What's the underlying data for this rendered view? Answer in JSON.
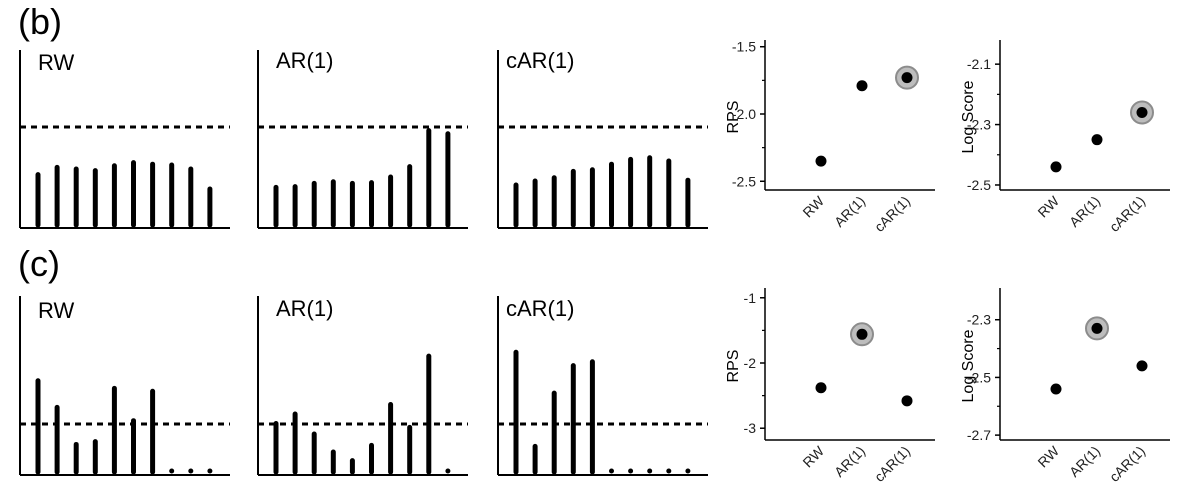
{
  "figure": {
    "rows": [
      {
        "label": "(b)",
        "hist_panels": [
          {
            "title": "RW",
            "values": [
              0.63,
              0.72,
              0.7,
              0.68,
              0.74,
              0.78,
              0.76,
              0.75,
              0.7,
              0.45
            ]
          },
          {
            "title": "AR(1)",
            "values": [
              0.47,
              0.48,
              0.52,
              0.54,
              0.52,
              0.53,
              0.6,
              0.73,
              1.18,
              1.14
            ]
          },
          {
            "title": "cAR(1)",
            "values": [
              0.5,
              0.55,
              0.59,
              0.67,
              0.69,
              0.76,
              0.82,
              0.84,
              0.8,
              0.56
            ]
          }
        ]
      },
      {
        "label": "(c)",
        "hist_panels": [
          {
            "title": "RW",
            "values": [
              0.96,
              0.68,
              0.29,
              0.32,
              0.88,
              0.54,
              0.85,
              0.0,
              0.0,
              0.0
            ]
          },
          {
            "title": "AR(1)",
            "values": [
              0.51,
              0.61,
              0.4,
              0.21,
              0.12,
              0.28,
              0.71,
              0.47,
              1.22,
              0.0
            ]
          },
          {
            "title": "cAR(1)",
            "values": [
              1.26,
              0.27,
              0.83,
              1.12,
              1.16,
              0.0,
              0.0,
              0.0,
              0.0,
              0.0
            ]
          }
        ]
      }
    ]
  },
  "chart_data": [
    {
      "type": "scatter",
      "row": "(b)",
      "ylabel": "RPS",
      "categories": [
        "RW",
        "AR(1)",
        "cAR(1)"
      ],
      "values": [
        -2.35,
        -1.79,
        -1.73
      ],
      "highlight_index": 2,
      "ylim": [
        -2.55,
        -1.45
      ],
      "yticks": [
        -1.5,
        -2.0,
        -2.5
      ],
      "ytick_labels": [
        "-1.5",
        "-2.0",
        "-2.5"
      ]
    },
    {
      "type": "scatter",
      "row": "(b)",
      "ylabel": "Log Score",
      "categories": [
        "RW",
        "AR(1)",
        "cAR(1)"
      ],
      "values": [
        -2.44,
        -2.35,
        -2.26
      ],
      "highlight_index": 2,
      "ylim": [
        -2.51,
        -2.02
      ],
      "yticks": [
        -2.1,
        -2.3,
        -2.5
      ],
      "ytick_labels": [
        "-2.1",
        "-2.3",
        "-2.5"
      ]
    },
    {
      "type": "scatter",
      "row": "(c)",
      "ylabel": "RPS",
      "categories": [
        "RW",
        "AR(1)",
        "cAR(1)"
      ],
      "values": [
        -2.38,
        -1.56,
        -2.58
      ],
      "highlight_index": 1,
      "ylim": [
        -3.15,
        -0.85
      ],
      "yticks": [
        -1,
        -2,
        -3
      ],
      "ytick_labels": [
        "-1",
        "-2",
        "-3"
      ]
    },
    {
      "type": "scatter",
      "row": "(c)",
      "ylabel": "Log Score",
      "categories": [
        "RW",
        "AR(1)",
        "cAR(1)"
      ],
      "values": [
        -2.54,
        -2.33,
        -2.46
      ],
      "highlight_index": 1,
      "ylim": [
        -2.71,
        -2.19
      ],
      "yticks": [
        -2.3,
        -2.5,
        -2.7
      ],
      "ytick_labels": [
        "-2.3",
        "-2.5",
        "-2.7"
      ]
    }
  ]
}
